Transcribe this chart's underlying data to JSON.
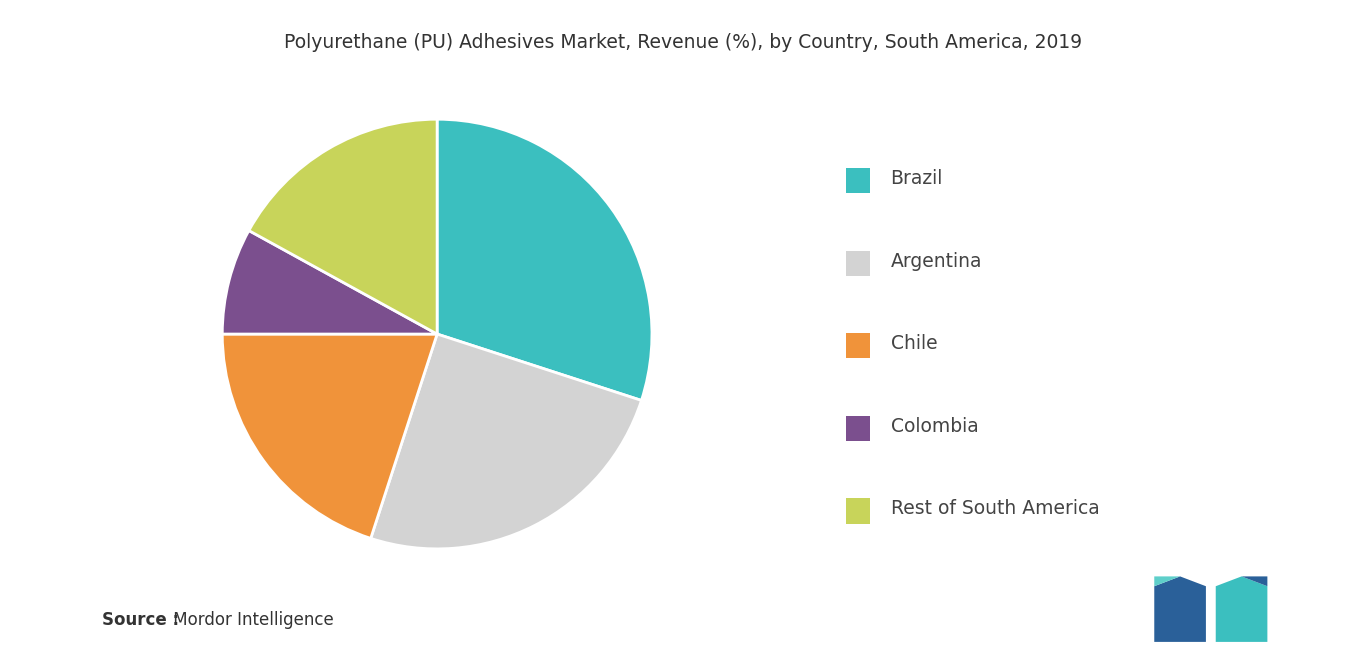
{
  "title": "Polyurethane (PU) Adhesives Market, Revenue (%), by Country, South America, 2019",
  "labels": [
    "Brazil",
    "Argentina",
    "Chile",
    "Colombia",
    "Rest of South America"
  ],
  "values": [
    30,
    25,
    20,
    8,
    17
  ],
  "colors": [
    "#3bbfbf",
    "#d3d3d3",
    "#f0933a",
    "#7b4f8e",
    "#c8d45a"
  ],
  "source_bold": "Source :",
  "source_normal": " Mordor Intelligence",
  "background_color": "#ffffff",
  "title_fontsize": 13.5,
  "legend_fontsize": 13.5,
  "source_fontsize": 12
}
